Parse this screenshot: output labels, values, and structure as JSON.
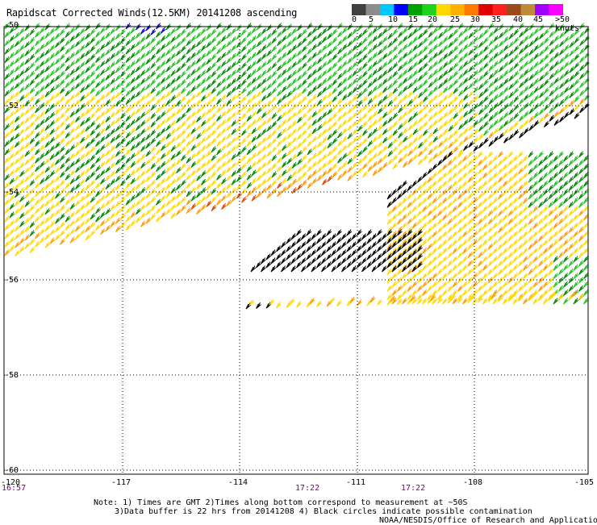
{
  "header": {
    "title": "Rapidscat Corrected Winds(12.5KM) 20141208 ascending"
  },
  "colorbar": {
    "labels": [
      "0",
      "5",
      "10",
      "15",
      "20",
      "25",
      "30",
      "35",
      "40",
      "45",
      ">50"
    ],
    "unit": "knots",
    "colors": [
      "#404040",
      "#8c8c8c",
      "#00c8ff",
      "#0000ff",
      "#00a000",
      "#1cd41c",
      "#ffd800",
      "#ffb000",
      "#ff7800",
      "#e00000",
      "#ff2020",
      "#9c4a1c",
      "#c08a3c",
      "#a000ff",
      "#ff00ff"
    ]
  },
  "map": {
    "lat_labels": [
      "-50",
      "-52",
      "-54",
      "-56",
      "-58",
      "-60"
    ],
    "lon_labels": [
      "-120",
      "-117",
      "-114",
      "-111",
      "-108",
      "-105"
    ],
    "time_labels": [
      "16:57",
      "17:22",
      "17:22"
    ],
    "lat_range": [
      -50,
      -60
    ],
    "lon_range": [
      -120,
      -105
    ],
    "grid": "dotted",
    "wind_colors": {
      "calm": "#000000",
      "light": "#0000cc",
      "moderate": "#008800",
      "fresh": "#1fc21f",
      "strong": "#ffd800",
      "gale": "#ff9a00",
      "storm": "#e04000"
    }
  },
  "notes": {
    "line1": "Note: 1) Times are GMT 2)Times along bottom correspond to measurement at ~50S",
    "line2": "3)Data buffer is 22 hrs from 20141208 4) Black circles indicate possible contamination",
    "credit": "NOAA/NESDIS/Office of Research and Applications"
  }
}
